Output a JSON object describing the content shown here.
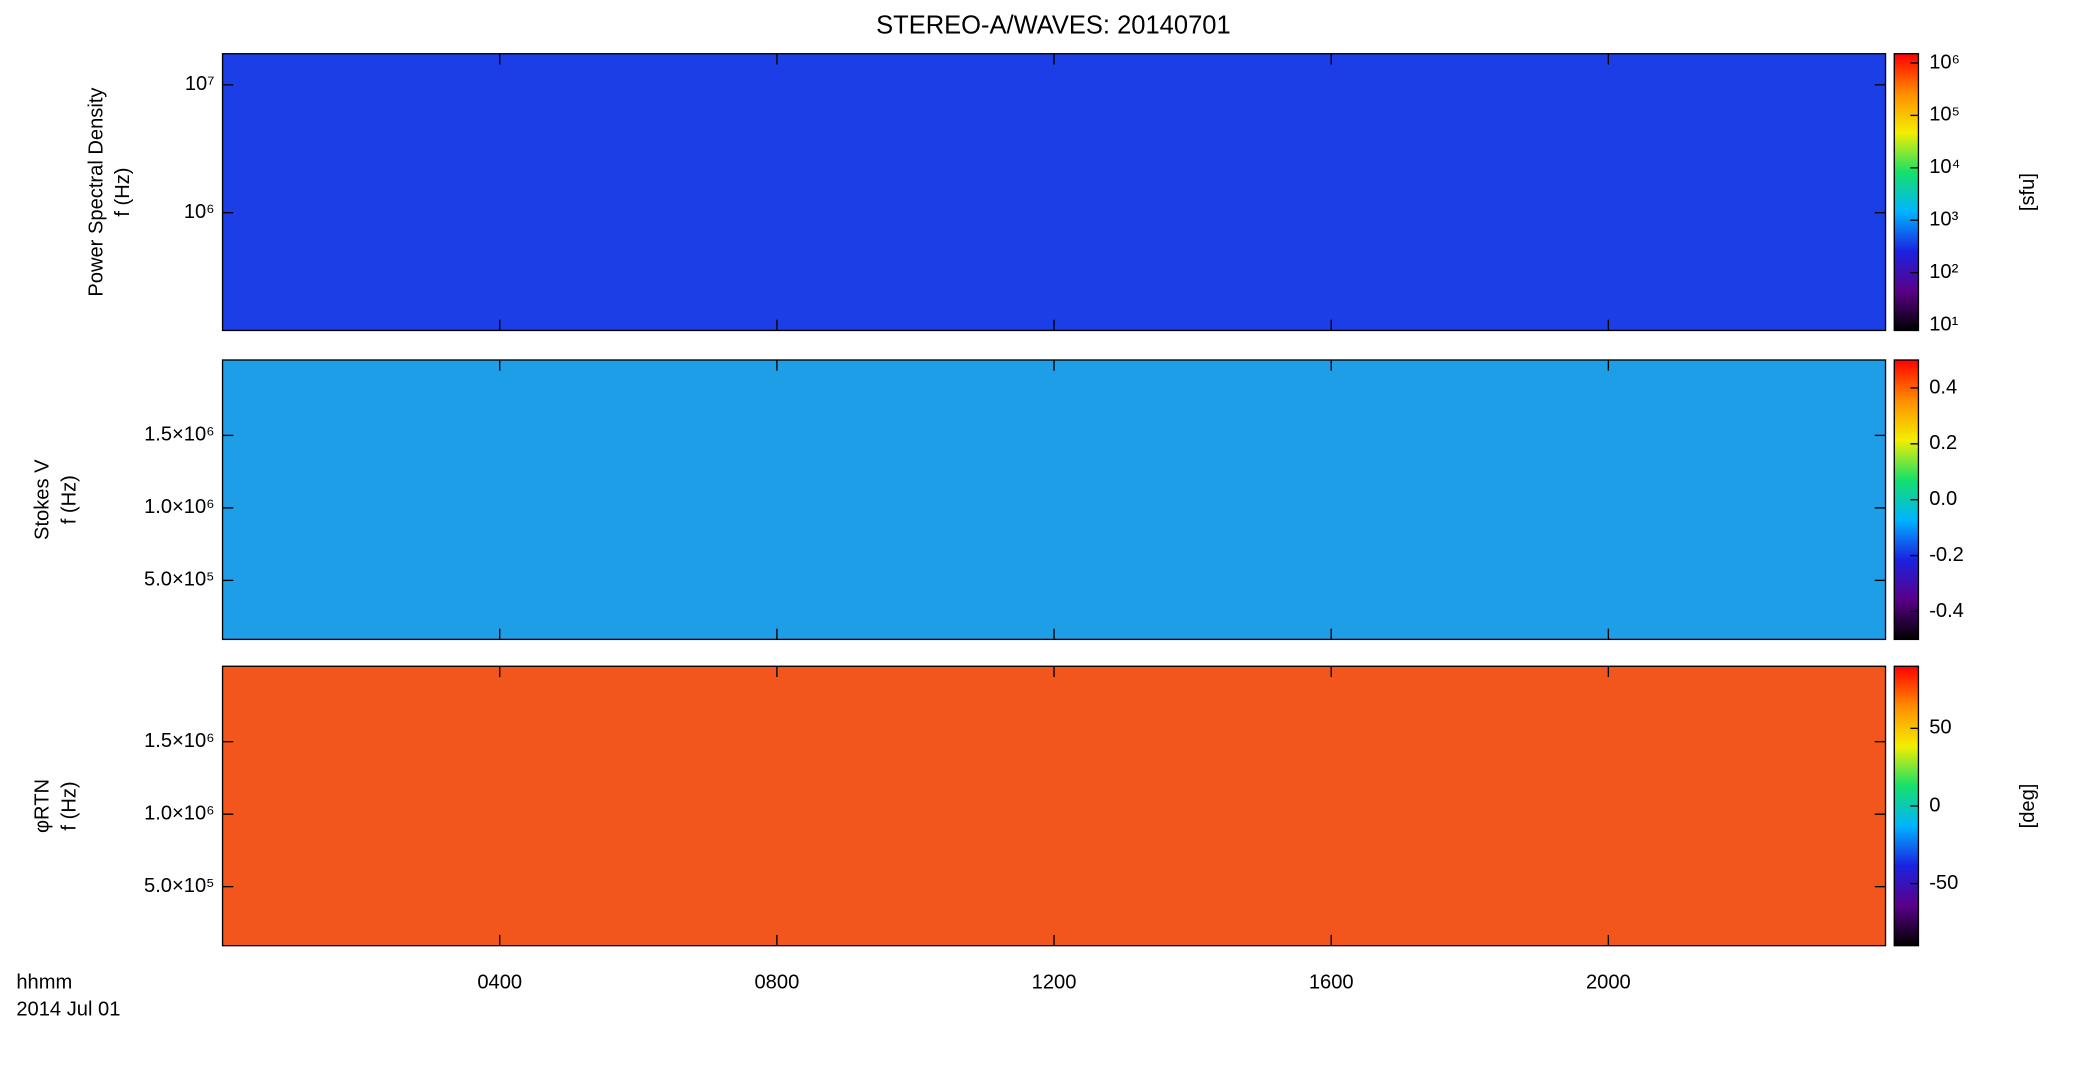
{
  "chart_data": [
    {
      "type": "heatmap",
      "title": "STEREO-A/WAVES: 20140701",
      "ylabel": [
        "Power Spectral Density",
        "f (Hz)"
      ],
      "xlim": [
        0,
        24
      ],
      "ylim": [
        120000,
        17500000
      ],
      "ylog": true,
      "yticks": [
        {
          "value": 1000000,
          "label": "10⁶"
        },
        {
          "value": 10000000,
          "label": "10⁷"
        }
      ],
      "background": "#1b3ee6",
      "colorbar": {
        "lim": [
          7.9,
          1500000
        ],
        "log": true,
        "label": "[sfu]",
        "ticks": [
          {
            "value": 10,
            "label": "10¹"
          },
          {
            "value": 100,
            "label": "10²"
          },
          {
            "value": 1000,
            "label": "10³"
          },
          {
            "value": 10000,
            "label": "10⁴"
          },
          {
            "value": 100000,
            "label": "10⁵"
          },
          {
            "value": 1000000,
            "label": "10⁶"
          }
        ],
        "colors": [
          "#000000",
          "#5a0088",
          "#1b22e0",
          "#00b4ff",
          "#16e06a",
          "#f4ee00",
          "#ff8c00",
          "#ff0000"
        ]
      }
    },
    {
      "type": "heatmap",
      "ylabel": [
        "Stokes V",
        "f (Hz)"
      ],
      "xlim": [
        0,
        24
      ],
      "ylim": [
        93000,
        2020000
      ],
      "ylog": false,
      "yticks": [
        {
          "value": 500000,
          "label": "5.0×10⁵"
        },
        {
          "value": 1000000,
          "label": "1.0×10⁶"
        },
        {
          "value": 1500000,
          "label": "1.5×10⁶"
        }
      ],
      "background": "#1f9ee8",
      "colorbar": {
        "lim": [
          -0.5,
          0.5
        ],
        "log": false,
        "ticks": [
          {
            "value": -0.4,
            "label": "-0.4"
          },
          {
            "value": -0.2,
            "label": "-0.2"
          },
          {
            "value": 0,
            "label": "0.0"
          },
          {
            "value": 0.2,
            "label": "0.2"
          },
          {
            "value": 0.4,
            "label": "0.4"
          }
        ],
        "colors": [
          "#000000",
          "#5a0088",
          "#1b22e0",
          "#00b4ff",
          "#16e06a",
          "#f4ee00",
          "#ff8c00",
          "#ff0000"
        ]
      }
    },
    {
      "type": "heatmap",
      "ylabel": [
        "φRTN",
        "f (Hz)"
      ],
      "xlim": [
        0,
        24
      ],
      "ylim": [
        93000,
        2020000
      ],
      "ylog": false,
      "yticks": [
        {
          "value": 500000,
          "label": "5.0×10⁵"
        },
        {
          "value": 1000000,
          "label": "1.0×10⁶"
        },
        {
          "value": 1500000,
          "label": "1.5×10⁶"
        }
      ],
      "xticks": [
        {
          "value": 4,
          "label": "0400"
        },
        {
          "value": 8,
          "label": "0800"
        },
        {
          "value": 12,
          "label": "1200"
        },
        {
          "value": 16,
          "label": "1600"
        },
        {
          "value": 20,
          "label": "2000"
        }
      ],
      "xlabel": [
        "hhmm",
        "2014 Jul 01"
      ],
      "background": "#f2561c",
      "colorbar": {
        "lim": [
          -90,
          90
        ],
        "log": false,
        "label": "[deg]",
        "ticks": [
          {
            "value": -50,
            "label": "-50"
          },
          {
            "value": 0,
            "label": "0"
          },
          {
            "value": 50,
            "label": "50"
          }
        ],
        "colors": [
          "#000000",
          "#5a0088",
          "#1b22e0",
          "#00b4ff",
          "#16e06a",
          "#f4ee00",
          "#ff8c00",
          "#ff0000"
        ]
      }
    }
  ]
}
